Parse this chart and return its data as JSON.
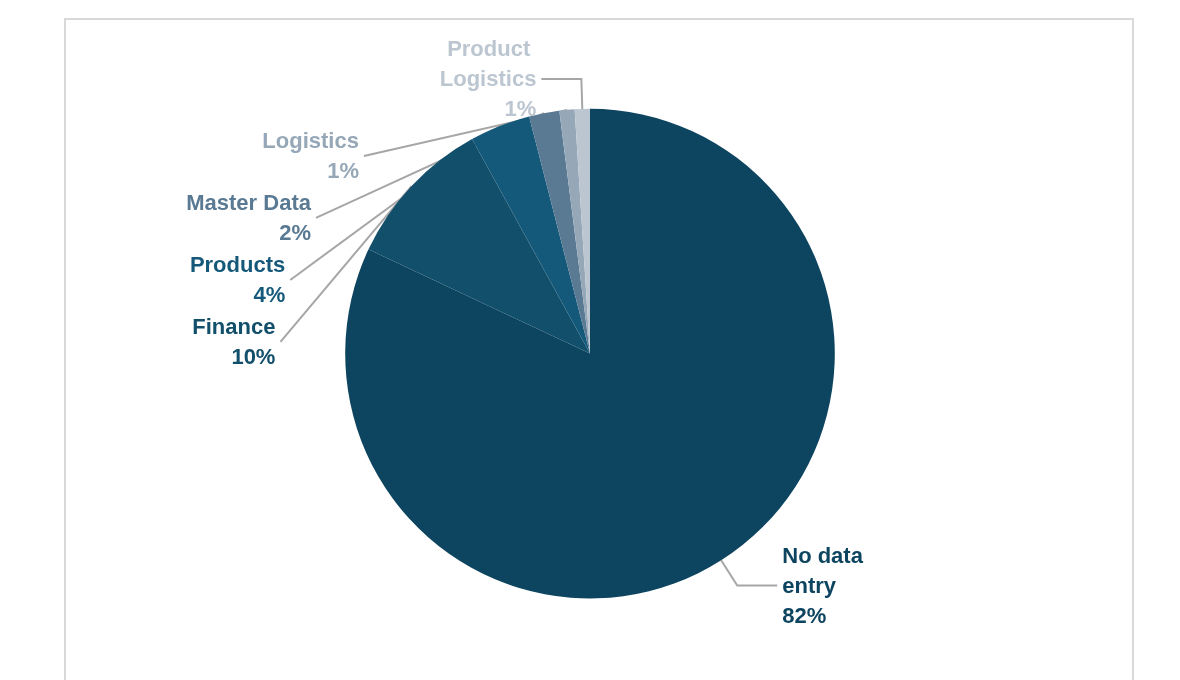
{
  "chart_data": {
    "type": "pie",
    "categories": [
      "No data entry",
      "Finance",
      "Products",
      "Master Data",
      "Logistics",
      "Product Logistics"
    ],
    "values": [
      82,
      10,
      4,
      2,
      1,
      1
    ],
    "value_labels": [
      "82%",
      "10%",
      "4%",
      "2%",
      "1%",
      "1%"
    ],
    "colors": [
      "#0d4460",
      "#124f6b",
      "#15597a",
      "#5a7a94",
      "#96a8b8",
      "#bcc6d0"
    ],
    "legend": false
  }
}
